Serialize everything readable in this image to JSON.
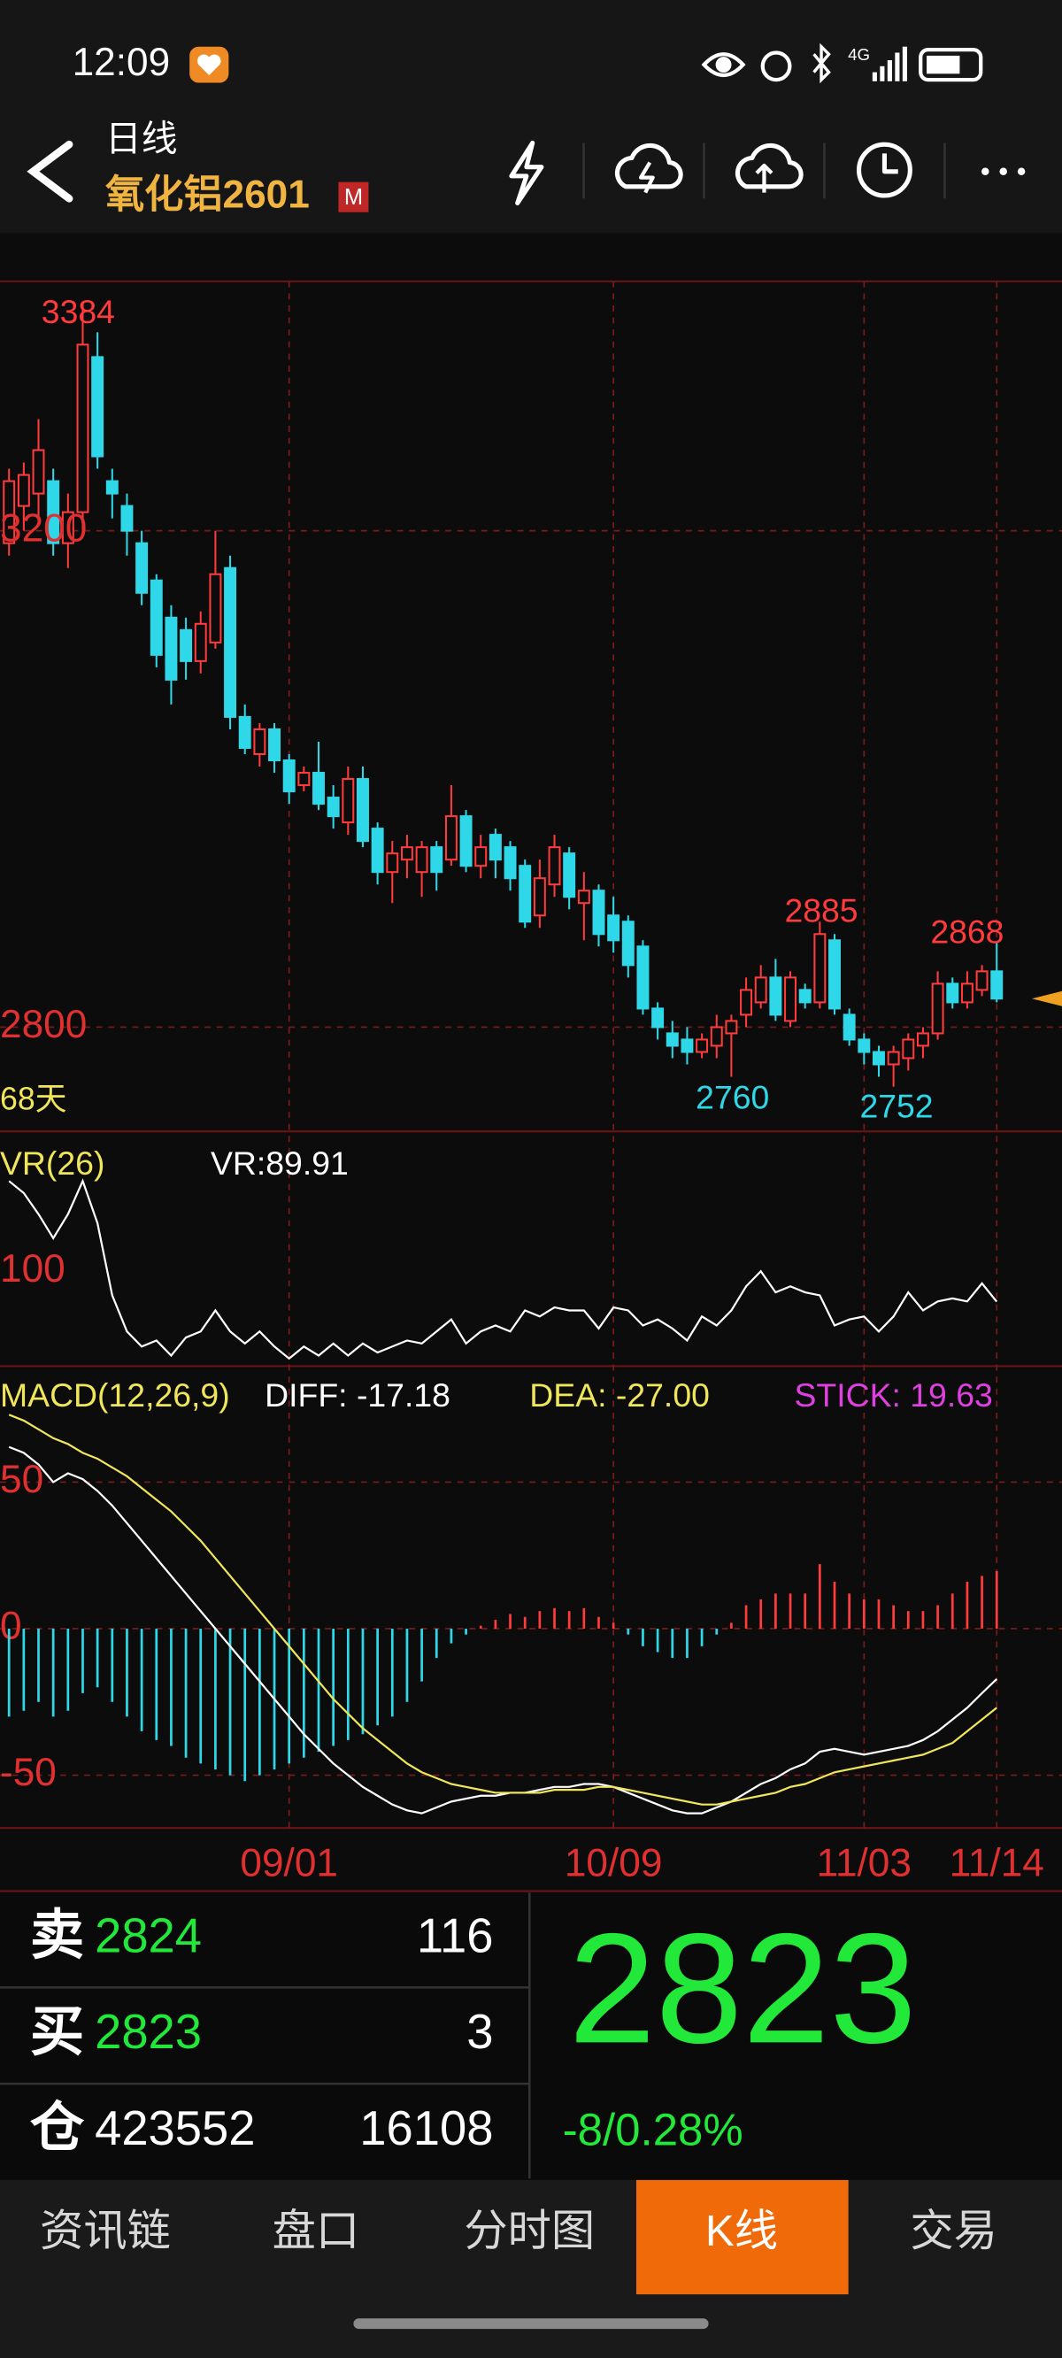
{
  "status_bar": {
    "time": "12:09",
    "network": "4G"
  },
  "header": {
    "period": "日线",
    "symbol": "氧化铝2601",
    "badge": "M"
  },
  "chart_data": [
    {
      "type": "candlestick",
      "categories": [
        null,
        null,
        null,
        null,
        null,
        null,
        null,
        null,
        null,
        null,
        null,
        null,
        null,
        null,
        null,
        null,
        null,
        null,
        null,
        "09/01",
        null,
        null,
        null,
        null,
        null,
        null,
        null,
        null,
        null,
        null,
        null,
        null,
        null,
        null,
        null,
        null,
        null,
        null,
        null,
        null,
        null,
        "10/09",
        null,
        null,
        null,
        null,
        null,
        null,
        null,
        null,
        null,
        null,
        null,
        null,
        null,
        null,
        null,
        null,
        "11/03",
        null,
        null,
        null,
        null,
        null,
        null,
        null,
        null,
        "11/14"
      ],
      "open": [
        3190,
        3220,
        3230,
        3240,
        3190,
        3215,
        3340,
        3240,
        3220,
        3190,
        3160,
        3130,
        3120,
        3095,
        3110,
        3170,
        3050,
        3020,
        3040,
        3015,
        2995,
        3005,
        2985,
        2965,
        3000,
        2960,
        2925,
        2935,
        2925,
        2945,
        2935,
        2970,
        2930,
        2955,
        2945,
        2930,
        2890,
        2915,
        2940,
        2900,
        2910,
        2890,
        2885,
        2865,
        2815,
        2795,
        2790,
        2780,
        2785,
        2795,
        2810,
        2820,
        2840,
        2805,
        2830,
        2820,
        2870,
        2810,
        2790,
        2780,
        2770,
        2775,
        2785,
        2795,
        2835,
        2820,
        2830,
        2845
      ],
      "high": [
        3250,
        3255,
        3290,
        3250,
        3230,
        3384,
        3360,
        3250,
        3230,
        3200,
        3165,
        3140,
        3130,
        3135,
        3200,
        3180,
        3060,
        3045,
        3045,
        3020,
        3010,
        3030,
        2995,
        3010,
        3010,
        2965,
        2950,
        2955,
        2950,
        2950,
        2995,
        2975,
        2955,
        2960,
        2950,
        2935,
        2935,
        2955,
        2945,
        2925,
        2915,
        2905,
        2890,
        2870,
        2820,
        2805,
        2800,
        2795,
        2810,
        2810,
        2840,
        2850,
        2855,
        2845,
        2835,
        2885,
        2875,
        2815,
        2795,
        2785,
        2785,
        2795,
        2800,
        2845,
        2840,
        2845,
        2850,
        2868
      ],
      "low": [
        3180,
        3200,
        3210,
        3180,
        3170,
        3200,
        3250,
        3210,
        3180,
        3140,
        3090,
        3060,
        3080,
        3085,
        3105,
        3040,
        3020,
        3010,
        3005,
        2980,
        2990,
        2975,
        2960,
        2955,
        2945,
        2915,
        2900,
        2920,
        2905,
        2910,
        2930,
        2925,
        2920,
        2920,
        2910,
        2880,
        2880,
        2905,
        2895,
        2870,
        2865,
        2860,
        2840,
        2810,
        2790,
        2775,
        2770,
        2775,
        2775,
        2760,
        2800,
        2815,
        2805,
        2800,
        2815,
        2815,
        2810,
        2785,
        2770,
        2760,
        2752,
        2765,
        2775,
        2790,
        2815,
        2815,
        2825,
        2820
      ],
      "close": [
        3240,
        3245,
        3265,
        3190,
        3215,
        3350,
        3260,
        3230,
        3200,
        3150,
        3100,
        3080,
        3095,
        3125,
        3165,
        3050,
        3025,
        3040,
        3015,
        2990,
        3005,
        2980,
        2970,
        3000,
        2950,
        2925,
        2940,
        2945,
        2945,
        2925,
        2970,
        2930,
        2945,
        2935,
        2920,
        2885,
        2920,
        2945,
        2905,
        2910,
        2875,
        2870,
        2850,
        2815,
        2800,
        2785,
        2780,
        2790,
        2800,
        2805,
        2830,
        2840,
        2810,
        2840,
        2820,
        2875,
        2815,
        2790,
        2780,
        2770,
        2780,
        2790,
        2795,
        2835,
        2820,
        2835,
        2845,
        2823
      ],
      "up_color": "#ff3b3b",
      "down_color": "#2ed8e8",
      "ylim": [
        2716,
        3401
      ],
      "yticks": [
        2800,
        3200
      ],
      "grid": true,
      "annotations": [
        {
          "text": "3384",
          "color": "#ff3b3b"
        },
        {
          "text": "2885",
          "color": "#ff3b3b"
        },
        {
          "text": "2760",
          "color": "#2ed8e8"
        },
        {
          "text": "2752",
          "color": "#2ed8e8"
        },
        {
          "text": "2868",
          "color": "#ff3b3b"
        }
      ],
      "days_label": "68天"
    },
    {
      "type": "line",
      "title": "VR(26)",
      "series": [
        {
          "label": "VR:89.91",
          "color": "#ffffff",
          "values": [
            130,
            126,
            119,
            111,
            119,
            130,
            116,
            92,
            80,
            75,
            77,
            72,
            78,
            80,
            87,
            80,
            76,
            80,
            75,
            71,
            75,
            72,
            76,
            72,
            76,
            73,
            75,
            77,
            76,
            80,
            84,
            76,
            80,
            82,
            80,
            87,
            85,
            88,
            87,
            87,
            81,
            88,
            87,
            82,
            84,
            81,
            77,
            85,
            82,
            87,
            95,
            100,
            93,
            95,
            93,
            92,
            82,
            84,
            85,
            80,
            85,
            93,
            87,
            90,
            91,
            90,
            96,
            89.91
          ]
        }
      ],
      "ylim": [
        70,
        142.5
      ],
      "yticks": [
        100
      ]
    },
    {
      "type": "macd",
      "title": "MACD(12,26,9)",
      "series": [
        {
          "label": "DIFF: -17.18",
          "color": "#ffffff",
          "kind": "line",
          "values": [
            62,
            60,
            56,
            50,
            53,
            51,
            47,
            42,
            36,
            30,
            24,
            18,
            12,
            6,
            0,
            -6,
            -12,
            -18,
            -24,
            -30,
            -36,
            -41,
            -46,
            -50,
            -54,
            -57,
            -60,
            -62,
            -63,
            -61,
            -59,
            -58,
            -57,
            -57,
            -56,
            -56,
            -55,
            -54,
            -54,
            -53,
            -53,
            -54,
            -56,
            -58,
            -60,
            -62,
            -63,
            -63,
            -61,
            -59,
            -56,
            -53,
            -51,
            -48,
            -46,
            -42,
            -41,
            -42,
            -43,
            -42,
            -41,
            -40,
            -38,
            -35,
            -31,
            -27,
            -22,
            -17.18
          ]
        },
        {
          "label": "DEA: -27.00",
          "color": "#f0e65a",
          "kind": "line",
          "values": [
            73,
            71,
            68,
            65,
            63,
            60,
            58,
            55,
            52,
            48,
            44,
            40,
            35,
            30,
            24,
            18,
            12,
            6,
            0,
            -6,
            -12,
            -18,
            -24,
            -29,
            -34,
            -38,
            -42,
            -46,
            -49,
            -51,
            -53,
            -54,
            -55,
            -56,
            -56,
            -56,
            -56,
            -55,
            -55,
            -55,
            -54,
            -54,
            -55,
            -56,
            -57,
            -58,
            -59,
            -60,
            -60,
            -59,
            -58,
            -57,
            -56,
            -54,
            -53,
            -51,
            -49,
            -48,
            -47,
            -46,
            -45,
            -44,
            -43,
            -41,
            -39,
            -35,
            -31,
            -27
          ]
        },
        {
          "label": "STICK: 19.63",
          "color": "#e040e0",
          "kind": "bar",
          "up_color": "#ff3b3b",
          "down_color": "#2ed8e8",
          "values": [
            -30,
            -28,
            -25,
            -30,
            -28,
            -22,
            -20,
            -25,
            -30,
            -35,
            -38,
            -40,
            -44,
            -46,
            -48,
            -50,
            -52,
            -50,
            -48,
            -46,
            -44,
            -42,
            -40,
            -38,
            -36,
            -33,
            -30,
            -25,
            -18,
            -10,
            -5,
            -2,
            1,
            3,
            5,
            4,
            6,
            7,
            6,
            7,
            4,
            2,
            -2,
            -6,
            -8,
            -10,
            -10,
            -6,
            -2,
            2,
            8,
            10,
            12,
            12,
            12,
            22,
            16,
            12,
            10,
            10,
            8,
            6,
            6,
            8,
            12,
            16,
            18,
            19.63
          ]
        }
      ],
      "ylim": [
        -68,
        86
      ],
      "yticks": [
        50,
        0,
        -50
      ]
    }
  ],
  "order_book": {
    "rows": [
      {
        "side": "卖",
        "price": "2824",
        "volume": "116"
      },
      {
        "side": "买",
        "price": "2823",
        "volume": "3"
      },
      {
        "side": "仓",
        "price": "423552",
        "volume": "16108"
      }
    ]
  },
  "quote": {
    "last": "2823",
    "change": "-8/0.28%"
  },
  "tabs": [
    "资讯链",
    "盘口",
    "分时图",
    "K线",
    "交易"
  ],
  "active_tab": 3
}
